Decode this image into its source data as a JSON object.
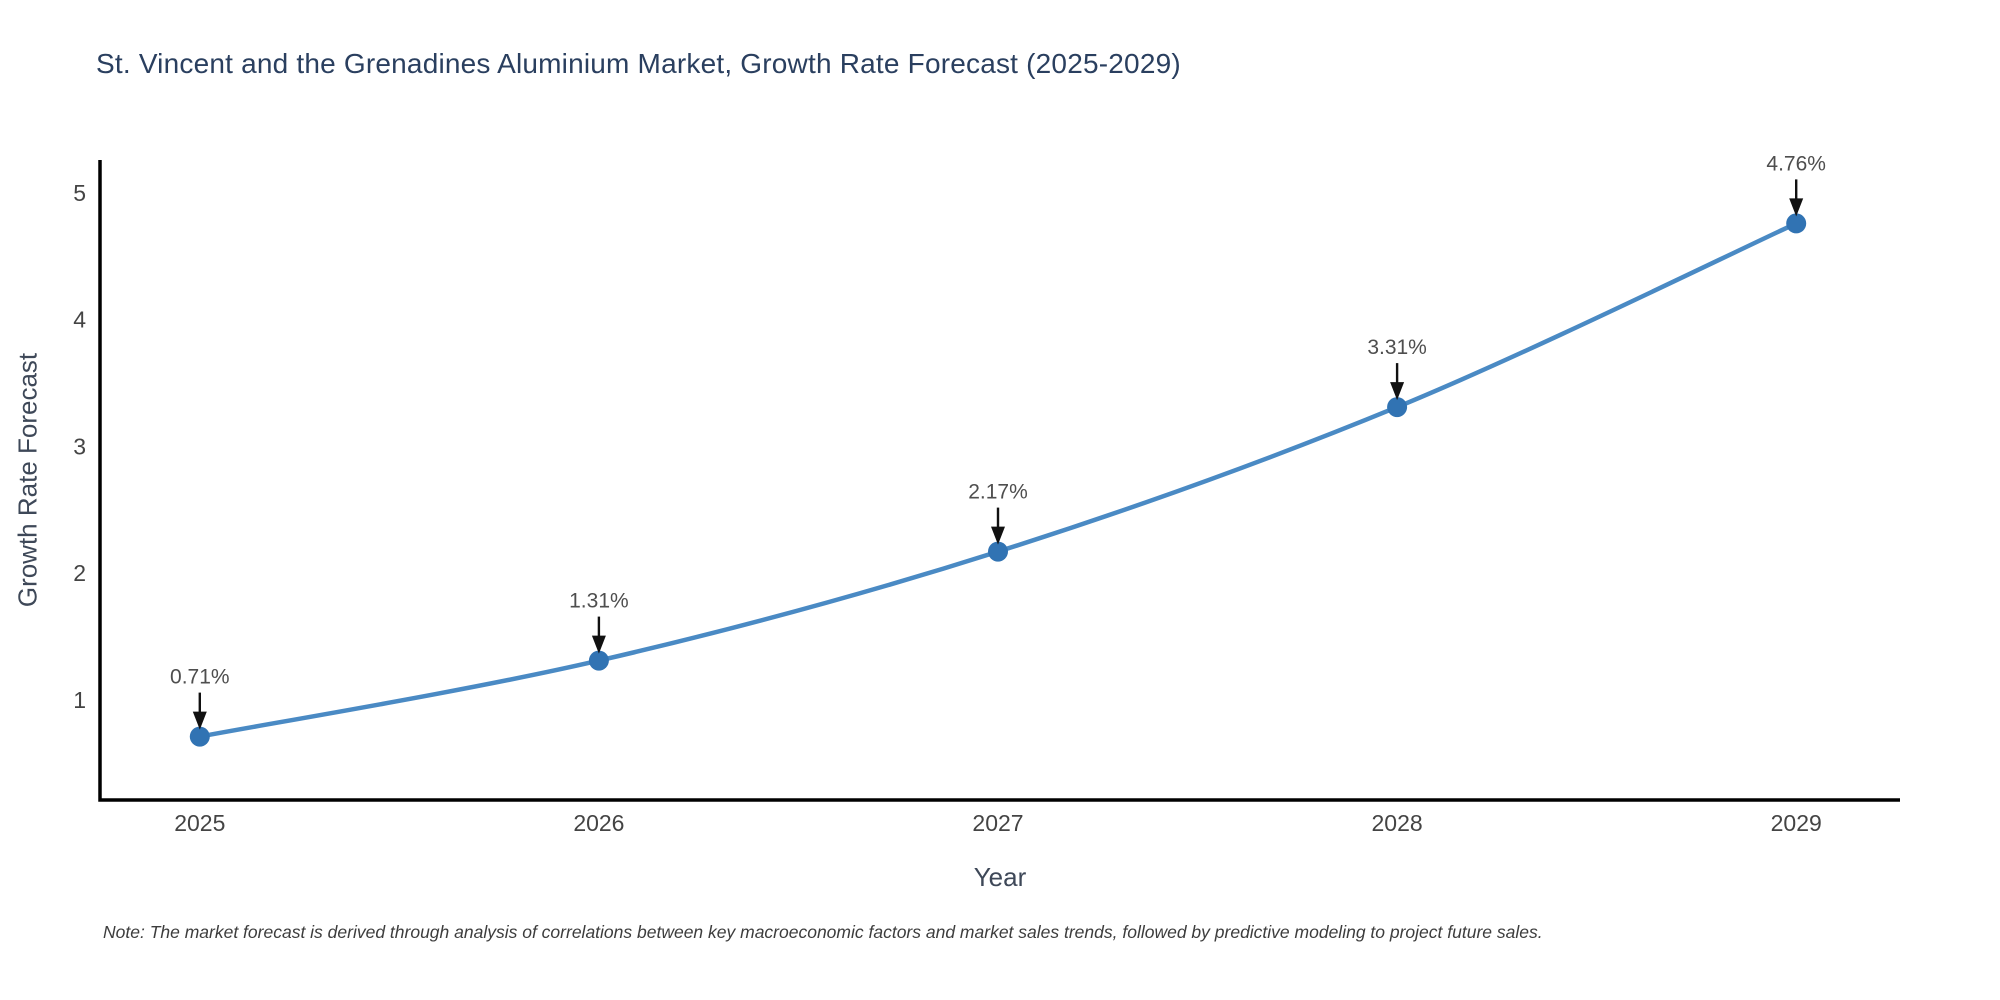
{
  "footnote": "Note: The market forecast is derived through analysis of correlations between key macroeconomic factors and market sales trends, followed by predictive modeling to project future sales.",
  "chart_data": {
    "type": "line",
    "title": "St. Vincent and the Grenadines Aluminium Market, Growth Rate Forecast (2025-2029)",
    "xlabel": "Year",
    "ylabel": "Growth Rate Forecast",
    "x": [
      2025,
      2026,
      2027,
      2028,
      2029
    ],
    "series": [
      {
        "name": "Growth Rate Forecast",
        "values": [
          0.71,
          1.31,
          2.17,
          3.31,
          4.76
        ]
      }
    ],
    "point_labels": [
      "0.71%",
      "1.31%",
      "2.17%",
      "3.31%",
      "4.76%"
    ],
    "yticks": [
      1,
      2,
      3,
      4,
      5
    ],
    "xtick_labels": [
      "2025",
      "2026",
      "2027",
      "2028",
      "2029"
    ],
    "xlim": [
      2024.75,
      2029.26
    ],
    "ylim": [
      0.21,
      5.26
    ],
    "grid": false,
    "legend_position": "none",
    "line_shape": "spline",
    "colors": {
      "line": "#4a8ac4",
      "marker": "#3173b3",
      "axis": "#000000",
      "tick_label": "#444444",
      "annotation_text": "#4e4e4e",
      "annotation_arrow": "#111111",
      "title": "#2a3f5f",
      "axis_title": "#3e4858",
      "background": "#ffffff"
    }
  }
}
